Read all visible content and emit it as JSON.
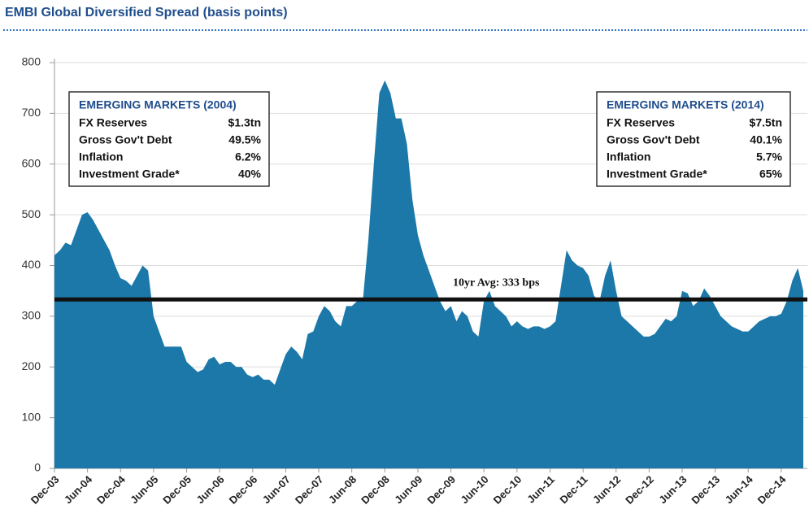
{
  "chart_data": {
    "type": "area",
    "title": "EMBI Global Diversified Spread (basis points)",
    "categories": [
      "Dec-03",
      null,
      null,
      null,
      null,
      null,
      "Jun-04",
      null,
      null,
      null,
      null,
      null,
      "Dec-04",
      null,
      null,
      null,
      null,
      null,
      "Jun-05",
      null,
      null,
      null,
      null,
      null,
      "Dec-05",
      null,
      null,
      null,
      null,
      null,
      "Jun-06",
      null,
      null,
      null,
      null,
      null,
      "Dec-06",
      null,
      null,
      null,
      null,
      null,
      "Jun-07",
      null,
      null,
      null,
      null,
      null,
      "Dec-07",
      null,
      null,
      null,
      null,
      null,
      "Jun-08",
      null,
      null,
      null,
      null,
      null,
      "Dec-08",
      null,
      null,
      null,
      null,
      null,
      "Jun-09",
      null,
      null,
      null,
      null,
      null,
      "Dec-09",
      null,
      null,
      null,
      null,
      null,
      "Jun-10",
      null,
      null,
      null,
      null,
      null,
      "Dec-10",
      null,
      null,
      null,
      null,
      null,
      "Jun-11",
      null,
      null,
      null,
      null,
      null,
      "Dec-11",
      null,
      null,
      null,
      null,
      null,
      "Jun-12",
      null,
      null,
      null,
      null,
      null,
      "Dec-12",
      null,
      null,
      null,
      null,
      null,
      "Jun-13",
      null,
      null,
      null,
      null,
      null,
      "Dec-13",
      null,
      null,
      null,
      null,
      null,
      "Jun-14",
      null,
      null,
      null,
      null,
      null,
      "Dec-14",
      null,
      null,
      null,
      null
    ],
    "values": [
      420,
      430,
      445,
      440,
      470,
      500,
      505,
      490,
      470,
      450,
      430,
      400,
      375,
      370,
      360,
      380,
      400,
      390,
      300,
      270,
      240,
      240,
      240,
      240,
      210,
      200,
      190,
      195,
      215,
      220,
      205,
      210,
      210,
      200,
      200,
      185,
      180,
      185,
      175,
      175,
      165,
      195,
      225,
      240,
      230,
      215,
      265,
      270,
      300,
      320,
      310,
      290,
      280,
      320,
      320,
      330,
      330,
      450,
      600,
      740,
      765,
      740,
      690,
      690,
      640,
      530,
      460,
      420,
      390,
      360,
      330,
      310,
      320,
      290,
      310,
      300,
      270,
      260,
      330,
      350,
      320,
      310,
      300,
      280,
      290,
      280,
      275,
      280,
      280,
      275,
      280,
      290,
      360,
      430,
      410,
      400,
      395,
      380,
      340,
      330,
      380,
      410,
      350,
      300,
      290,
      280,
      270,
      260,
      260,
      265,
      280,
      295,
      290,
      300,
      350,
      345,
      320,
      330,
      355,
      340,
      320,
      300,
      290,
      280,
      275,
      270,
      270,
      280,
      290,
      295,
      300,
      300,
      305,
      330,
      370,
      395,
      350
    ],
    "color": "#1b78a8",
    "ylim": [
      0,
      800
    ],
    "yticks": [
      0,
      100,
      200,
      300,
      400,
      500,
      600,
      700,
      800
    ],
    "grid": true,
    "average": {
      "value": 333,
      "label": "10yr Avg: 333 bps"
    },
    "boxes": [
      {
        "title": "EMERGING MARKETS (2004)",
        "rows": [
          [
            "FX Reserves",
            "$1.3tn"
          ],
          [
            "Gross Gov't Debt",
            "49.5%"
          ],
          [
            "Inflation",
            "6.2%"
          ],
          [
            "Investment Grade*",
            "40%"
          ]
        ]
      },
      {
        "title": "EMERGING MARKETS (2014)",
        "rows": [
          [
            "FX Reserves",
            "$7.5tn"
          ],
          [
            "Gross Gov't Debt",
            "40.1%"
          ],
          [
            "Inflation",
            "5.7%"
          ],
          [
            "Investment Grade*",
            "65%"
          ]
        ]
      }
    ]
  }
}
